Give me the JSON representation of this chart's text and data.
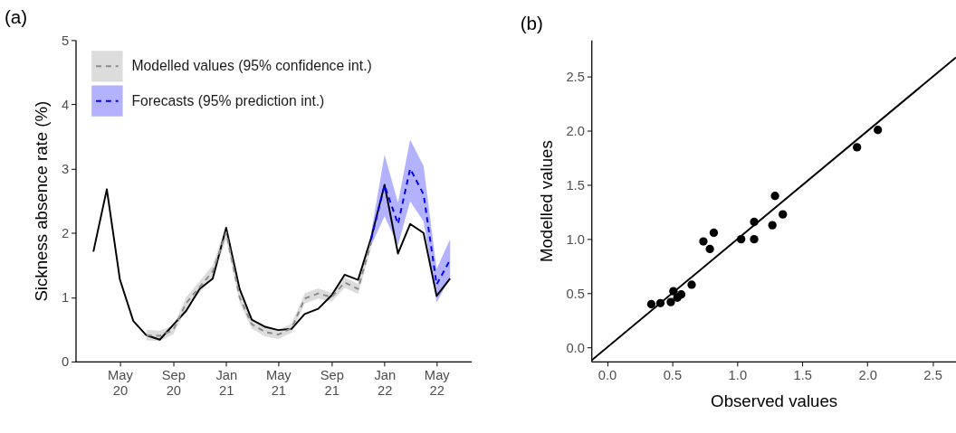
{
  "chart_data": [
    {
      "type": "line",
      "title": "(a)",
      "ylabel": "Sickness absence rate (%)",
      "x": [
        "2020-03",
        "2020-04",
        "2020-05",
        "2020-06",
        "2020-07",
        "2020-08",
        "2020-09",
        "2020-10",
        "2020-11",
        "2020-12",
        "2021-01",
        "2021-02",
        "2021-03",
        "2021-04",
        "2021-05",
        "2021-06",
        "2021-07",
        "2021-08",
        "2021-09",
        "2021-10",
        "2021-11",
        "2021-12",
        "2022-01",
        "2022-02",
        "2022-03",
        "2022-04",
        "2022-05",
        "2022-06"
      ],
      "series": [
        {
          "color": "#000000",
          "values": [
            1.71,
            2.68,
            1.28,
            0.63,
            0.41,
            0.34,
            0.57,
            0.79,
            1.13,
            1.29,
            2.08,
            1.13,
            0.65,
            0.54,
            0.49,
            0.51,
            0.74,
            0.82,
            1.03,
            1.35,
            1.27,
            1.92,
            2.75,
            1.68,
            2.14,
            2.0,
            1.02,
            1.29
          ]
        },
        {
          "name": "Modelled values (95% confidence int.)",
          "color": "#8c8c8c",
          "line_style": "dashed",
          "values": [
            null,
            null,
            null,
            null,
            0.41,
            0.4,
            0.49,
            0.91,
            1.16,
            1.4,
            2.01,
            1.0,
            0.58,
            0.46,
            0.42,
            0.52,
            0.98,
            1.06,
            1.0,
            1.23,
            1.13,
            1.85,
            null,
            null,
            null,
            null,
            null,
            null
          ],
          "lower": [
            null,
            null,
            null,
            null,
            0.33,
            0.32,
            0.42,
            0.82,
            1.07,
            1.3,
            1.9,
            0.92,
            0.51,
            0.39,
            0.35,
            0.45,
            0.9,
            0.98,
            0.93,
            1.15,
            1.05,
            1.76,
            null,
            null,
            null,
            null,
            null,
            null
          ],
          "upper": [
            null,
            null,
            null,
            null,
            0.49,
            0.48,
            0.56,
            1.0,
            1.25,
            1.5,
            2.12,
            1.08,
            0.65,
            0.53,
            0.49,
            0.59,
            1.06,
            1.14,
            1.07,
            1.31,
            1.21,
            1.94,
            null,
            null,
            null,
            null,
            null,
            null
          ]
        },
        {
          "name": "Forecasts (95% prediction int.)",
          "color": "#0000ff",
          "line_style": "dashed",
          "values": [
            null,
            null,
            null,
            null,
            null,
            null,
            null,
            null,
            null,
            null,
            null,
            null,
            null,
            null,
            null,
            null,
            null,
            null,
            null,
            null,
            null,
            1.9,
            2.74,
            2.14,
            3.0,
            2.6,
            1.2,
            1.58
          ],
          "lower": [
            null,
            null,
            null,
            null,
            null,
            null,
            null,
            null,
            null,
            null,
            null,
            null,
            null,
            null,
            null,
            null,
            null,
            null,
            null,
            null,
            null,
            1.8,
            2.26,
            1.81,
            2.49,
            2.18,
            0.92,
            1.3
          ],
          "upper": [
            null,
            null,
            null,
            null,
            null,
            null,
            null,
            null,
            null,
            null,
            null,
            null,
            null,
            null,
            null,
            null,
            null,
            null,
            null,
            null,
            null,
            2.0,
            3.22,
            2.47,
            3.45,
            3.04,
            1.44,
            1.9
          ]
        }
      ],
      "xlim": [
        "2020-01-20",
        "2022-07-20"
      ],
      "xticks": [
        {
          "value": "2020-05",
          "label": "May\n20"
        },
        {
          "value": "2020-09",
          "label": "Sep\n20"
        },
        {
          "value": "2021-01",
          "label": "Jan\n21"
        },
        {
          "value": "2021-05",
          "label": "May\n21"
        },
        {
          "value": "2021-09",
          "label": "Sep\n21"
        },
        {
          "value": "2022-01",
          "label": "Jan\n22"
        },
        {
          "value": "2022-05",
          "label": "May\n22"
        }
      ],
      "ylim": [
        0,
        5
      ],
      "yticks": [
        0,
        1,
        2,
        3,
        4,
        5
      ],
      "grid": false,
      "legend": "top left",
      "marker": "none"
    },
    {
      "type": "scatter",
      "title": "(b)",
      "xlabel": "Observed values",
      "ylabel": "Modelled values",
      "series": [
        {
          "type": "scatter",
          "color": "#000000",
          "marker": "circle",
          "x": [
            0.41,
            0.34,
            0.57,
            0.79,
            1.13,
            1.29,
            2.08,
            1.13,
            0.65,
            0.54,
            0.49,
            0.51,
            0.74,
            0.82,
            1.03,
            1.35,
            1.27,
            1.92
          ],
          "values": [
            0.41,
            0.4,
            0.49,
            0.91,
            1.16,
            1.4,
            2.01,
            1.0,
            0.58,
            0.46,
            0.42,
            0.52,
            0.98,
            1.06,
            1.0,
            1.23,
            1.13,
            1.85
          ]
        },
        {
          "type": "line",
          "color": "#000000",
          "marker": "none",
          "x": [
            -0.12,
            2.68
          ],
          "values": [
            -0.12,
            2.68
          ]
        }
      ],
      "xlim": [
        -0.12,
        2.68
      ],
      "xticks": [
        {
          "value": 0,
          "label": "0.0"
        },
        0.5,
        {
          "value": 1,
          "label": "1.0"
        },
        1.5,
        {
          "value": 2,
          "label": "2.0"
        },
        2.5
      ],
      "ylim": [
        -0.13,
        2.84
      ],
      "yticks": [
        {
          "value": 0,
          "label": "0.0"
        },
        0.5,
        {
          "value": 1,
          "label": "1.0"
        },
        1.5,
        {
          "value": 2,
          "label": "2.0"
        },
        2.5
      ],
      "grid": false,
      "legend": false
    }
  ]
}
